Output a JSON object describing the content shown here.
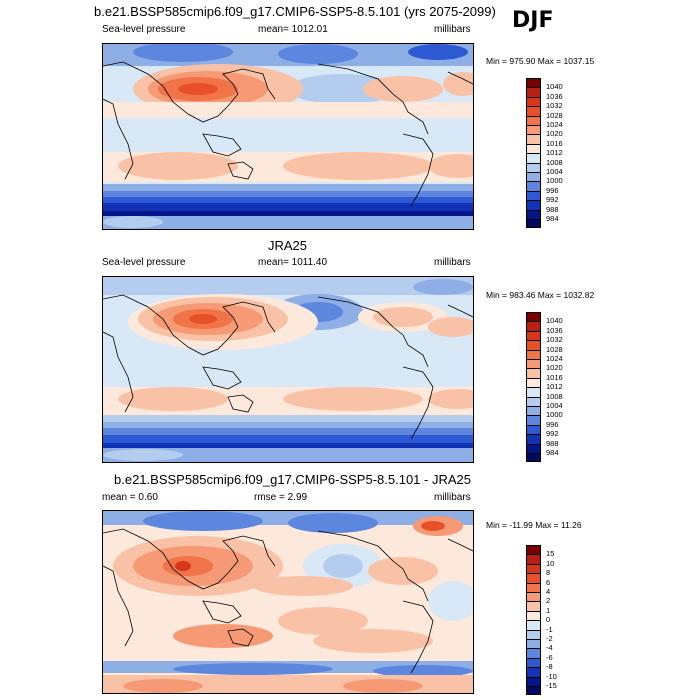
{
  "season": "DJF",
  "panel1": {
    "title": "b.e21.BSSP585cmip6.f09_g17.CMIP6-SSP5-8.5.101 (yrs 2075-2099)",
    "left_label": "Sea-level pressure",
    "center_label": "mean= 1012.01",
    "right_label": "millibars",
    "minmax": "Min = 975.90 Max = 1037.15"
  },
  "panel2": {
    "title": "JRA25",
    "left_label": "Sea-level pressure",
    "center_label": "mean= 1011.40",
    "right_label": "millibars",
    "minmax": "Min = 983.46 Max = 1032.82"
  },
  "panel3": {
    "title": "b.e21.BSSP585cmip6.f09_g17.CMIP6-SSP5-8.5.101 - JRA25",
    "left_label": "mean =   0.60",
    "center_label": "rmse =   2.99",
    "right_label": "millibars",
    "minmax": "Min = -11.99 Max =  11.26"
  },
  "colorbar_abs": {
    "levels": [
      "1040",
      "1036",
      "1032",
      "1028",
      "1024",
      "1020",
      "1016",
      "1012",
      "1008",
      "1004",
      "1000",
      "996",
      "992",
      "988",
      "984"
    ],
    "colors": [
      "#7a0000",
      "#b81e12",
      "#d8361a",
      "#e8502a",
      "#f07448",
      "#f59a74",
      "#f9c2a6",
      "#fde8dc",
      "#d9e8f6",
      "#b4cdef",
      "#8eaee6",
      "#5d86de",
      "#2d5ad2",
      "#1033b8",
      "#06148a",
      "#000a5e"
    ]
  },
  "colorbar_diff": {
    "levels": [
      "15",
      "10",
      "8",
      "6",
      "4",
      "2",
      "1",
      "0",
      "-1",
      "-2",
      "-4",
      "-6",
      "-8",
      "-10",
      "-15"
    ],
    "colors": [
      "#7a0000",
      "#b81e12",
      "#d8361a",
      "#e8502a",
      "#f07448",
      "#f59a74",
      "#f9c2a6",
      "#fde8dc",
      "#d9e8f6",
      "#b4cdef",
      "#8eaee6",
      "#5d86de",
      "#2d5ad2",
      "#1033b8",
      "#06148a",
      "#000a5e"
    ]
  },
  "chart_data": [
    {
      "type": "heatmap",
      "title": "b.e21.BSSP585cmip6.f09_g17.CMIP6-SSP5-8.5.101 (yrs 2075-2099)",
      "variable": "Sea-level pressure",
      "units": "millibars",
      "mean": 1012.01,
      "min": 975.9,
      "max": 1037.15,
      "contour_levels": [
        984,
        988,
        992,
        996,
        1000,
        1004,
        1008,
        1012,
        1016,
        1020,
        1024,
        1028,
        1032,
        1036,
        1040
      ]
    },
    {
      "type": "heatmap",
      "title": "JRA25",
      "variable": "Sea-level pressure",
      "units": "millibars",
      "mean": 1011.4,
      "min": 983.46,
      "max": 1032.82,
      "contour_levels": [
        984,
        988,
        992,
        996,
        1000,
        1004,
        1008,
        1012,
        1016,
        1020,
        1024,
        1028,
        1032,
        1036,
        1040
      ]
    },
    {
      "type": "heatmap",
      "title": "b.e21.BSSP585cmip6.f09_g17.CMIP6-SSP5-8.5.101 - JRA25",
      "units": "millibars",
      "mean": 0.6,
      "rmse": 2.99,
      "min": -11.99,
      "max": 11.26,
      "contour_levels": [
        -15,
        -10,
        -8,
        -6,
        -4,
        -2,
        -1,
        0,
        1,
        2,
        4,
        6,
        8,
        10,
        15
      ]
    }
  ]
}
